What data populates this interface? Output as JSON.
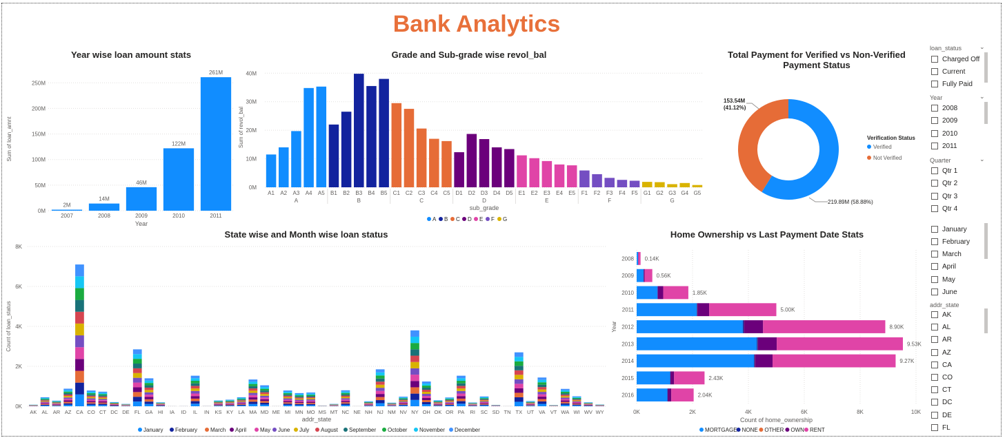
{
  "page_title": "Bank Analytics",
  "colors": {
    "blue": "#118DFF",
    "title": "#E8703A"
  },
  "chart_data": [
    {
      "id": "year_loan",
      "type": "bar",
      "title": "Year wise loan amount stats",
      "xlabel": "Year",
      "ylabel": "Sum of loan_amnt",
      "categories": [
        "2007",
        "2008",
        "2009",
        "2010",
        "2011"
      ],
      "values": [
        2,
        14,
        46,
        122,
        261
      ],
      "data_labels": [
        "2M",
        "14M",
        "46M",
        "122M",
        "261M"
      ],
      "ylim": [
        0,
        280
      ],
      "yticks": [
        0,
        50,
        100,
        150,
        200,
        250
      ],
      "ytick_labels": [
        "0M",
        "50M",
        "100M",
        "150M",
        "200M",
        "250M"
      ],
      "color": "#118DFF"
    },
    {
      "id": "grade",
      "type": "bar",
      "title": "Grade and Sub-grade wise revol_bal",
      "xlabel": "sub_grade",
      "ylabel": "Sum of revol_bal",
      "categories": [
        "A1",
        "A2",
        "A3",
        "A4",
        "A5",
        "B1",
        "B2",
        "B3",
        "B4",
        "B5",
        "C1",
        "C2",
        "C3",
        "C4",
        "C5",
        "D1",
        "D2",
        "D3",
        "D4",
        "D5",
        "E1",
        "E2",
        "E3",
        "E4",
        "E5",
        "F1",
        "F2",
        "F3",
        "F4",
        "F5",
        "G1",
        "G2",
        "G3",
        "G4",
        "G5"
      ],
      "values": [
        11.5,
        14,
        19.7,
        34.8,
        35.3,
        22,
        26.5,
        39.8,
        35.5,
        38,
        29.5,
        27.5,
        20.6,
        17,
        16.2,
        12.3,
        18.7,
        16.9,
        14,
        13.4,
        11.2,
        10.2,
        9.2,
        8,
        7.7,
        5.9,
        4.6,
        3.3,
        2.6,
        2.3,
        1.9,
        1.8,
        1.1,
        1.5,
        0.8
      ],
      "groups": [
        {
          "name": "A",
          "color": "#118DFF"
        },
        {
          "name": "B",
          "color": "#12239E"
        },
        {
          "name": "C",
          "color": "#E66C37"
        },
        {
          "name": "D",
          "color": "#6B007B"
        },
        {
          "name": "E",
          "color": "#E044A7"
        },
        {
          "name": "F",
          "color": "#744EC2"
        },
        {
          "name": "G",
          "color": "#D9B300"
        }
      ],
      "ylim": [
        0,
        42
      ],
      "yticks": [
        0,
        10,
        20,
        30,
        40
      ],
      "ytick_labels": [
        "0M",
        "10M",
        "20M",
        "30M",
        "40M"
      ],
      "legend": [
        "A",
        "B",
        "C",
        "D",
        "E",
        "F",
        "G"
      ]
    },
    {
      "id": "verification",
      "type": "pie",
      "title": "Total Payment for Verified vs Non-Verified Payment Status",
      "legend_title": "Verification Status",
      "slices": [
        {
          "name": "Verified",
          "value": 219.89,
          "label": "219.89M (58.88%)",
          "color": "#118DFF"
        },
        {
          "name": "Not Verified",
          "value": 153.54,
          "label": "153.54M\n(41.12%)",
          "color": "#E66C37"
        }
      ]
    },
    {
      "id": "state_month",
      "type": "bar",
      "stacked": true,
      "title": "State wise and Month wise loan status",
      "xlabel": "addr_state",
      "ylabel": "Count of loan_status",
      "categories": [
        "AK",
        "AL",
        "AR",
        "AZ",
        "CA",
        "CO",
        "CT",
        "DC",
        "DE",
        "FL",
        "GA",
        "HI",
        "IA",
        "ID",
        "IL",
        "IN",
        "KS",
        "KY",
        "LA",
        "MA",
        "MD",
        "ME",
        "MI",
        "MN",
        "MO",
        "MS",
        "MT",
        "NC",
        "NE",
        "NH",
        "NJ",
        "NM",
        "NV",
        "NY",
        "OH",
        "OK",
        "OR",
        "PA",
        "RI",
        "SC",
        "SD",
        "TN",
        "TX",
        "UT",
        "VA",
        "VT",
        "WA",
        "WI",
        "WV",
        "WY"
      ],
      "totals": [
        80,
        450,
        280,
        880,
        7100,
        790,
        730,
        210,
        120,
        2850,
        1400,
        200,
        5,
        6,
        1530,
        10,
        290,
        330,
        450,
        1340,
        1050,
        5,
        790,
        660,
        690,
        30,
        120,
        800,
        5,
        250,
        1850,
        180,
        480,
        3800,
        1240,
        300,
        440,
        1530,
        190,
        490,
        70,
        5,
        2700,
        260,
        1440,
        60,
        870,
        500,
        200,
        90
      ],
      "months": [
        "January",
        "February",
        "March",
        "April",
        "May",
        "June",
        "July",
        "August",
        "September",
        "October",
        "November",
        "December"
      ],
      "month_colors": [
        "#118DFF",
        "#12239E",
        "#E66C37",
        "#6B007B",
        "#E044A7",
        "#744EC2",
        "#D9B300",
        "#D64550",
        "#197278",
        "#1AAB40",
        "#15C6F4",
        "#4092FF"
      ],
      "ylim": [
        0,
        8000
      ],
      "yticks": [
        0,
        2000,
        4000,
        6000,
        8000
      ],
      "ytick_labels": [
        "0K",
        "2K",
        "4K",
        "6K",
        "8K"
      ]
    },
    {
      "id": "home_ownership",
      "type": "bar",
      "orientation": "horizontal",
      "stacked": true,
      "title": "Home Ownership vs Last Payment Date Stats",
      "xlabel": "Count of home_ownership",
      "ylabel": "Year",
      "categories": [
        "2008",
        "2009",
        "2010",
        "2011",
        "2012",
        "2013",
        "2014",
        "2015",
        "2016"
      ],
      "series": [
        {
          "name": "MORTGAGE",
          "color": "#118DFF",
          "values": [
            50,
            250,
            750,
            2150,
            3800,
            4300,
            4200,
            1200,
            1100
          ]
        },
        {
          "name": "NONE",
          "color": "#12239E",
          "values": [
            0,
            0,
            0,
            20,
            40,
            40,
            30,
            10,
            10
          ]
        },
        {
          "name": "OTHER",
          "color": "#E66C37",
          "values": [
            0,
            0,
            0,
            5,
            5,
            5,
            5,
            0,
            0
          ]
        },
        {
          "name": "OWN",
          "color": "#6B007B",
          "values": [
            10,
            40,
            200,
            420,
            680,
            670,
            630,
            130,
            130
          ]
        },
        {
          "name": "RENT",
          "color": "#E044A7",
          "values": [
            80,
            270,
            900,
            2405,
            4375,
            4515,
            4405,
            1090,
            800
          ]
        }
      ],
      "data_labels": [
        "0.14K",
        "0.56K",
        "1.85K",
        "5.00K",
        "8.90K",
        "9.53K",
        "9.27K",
        "2.43K",
        "2.04K"
      ],
      "xlim": [
        0,
        10000
      ],
      "xticks": [
        0,
        2000,
        4000,
        6000,
        8000,
        10000
      ],
      "xtick_labels": [
        "0K",
        "2K",
        "4K",
        "6K",
        "8K",
        "10K"
      ]
    }
  ],
  "slicers": {
    "loan_status": {
      "title": "loan_status",
      "items": [
        "Charged Off",
        "Current",
        "Fully Paid"
      ]
    },
    "year": {
      "title": "Year",
      "items": [
        "2008",
        "2009",
        "2010",
        "2011"
      ]
    },
    "quarter": {
      "title": "Quarter",
      "items": [
        "Qtr 1",
        "Qtr 2",
        "Qtr 3",
        "Qtr 4"
      ]
    },
    "month": {
      "items": [
        "January",
        "February",
        "March",
        "April",
        "May",
        "June"
      ]
    },
    "addr_state": {
      "title": "addr_state",
      "items": [
        "AK",
        "AL",
        "AR",
        "AZ",
        "CA",
        "CO",
        "CT",
        "DC",
        "DE",
        "FL"
      ]
    }
  }
}
